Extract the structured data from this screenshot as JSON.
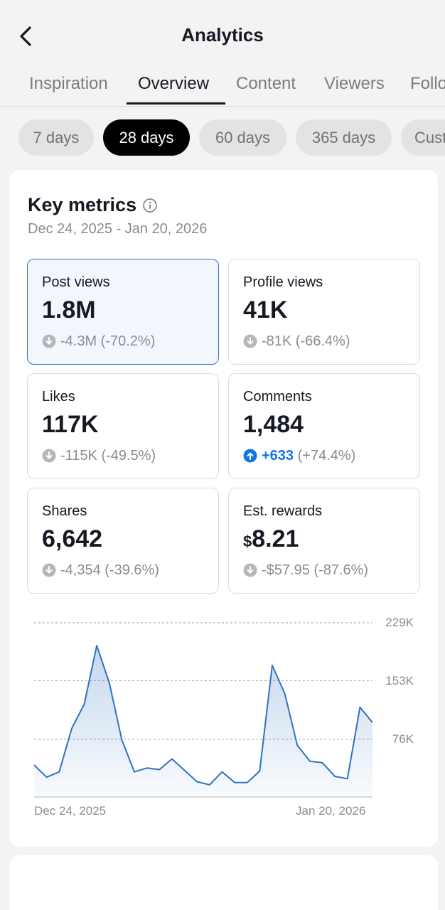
{
  "header": {
    "title": "Analytics",
    "back_icon": "chevron-left-icon"
  },
  "tabs": [
    {
      "label": "Inspiration",
      "active": false
    },
    {
      "label": "Overview",
      "active": true
    },
    {
      "label": "Content",
      "active": false
    },
    {
      "label": "Viewers",
      "active": false
    },
    {
      "label": "Followers",
      "active": false
    }
  ],
  "ranges": [
    {
      "label": "7 days",
      "active": false
    },
    {
      "label": "28 days",
      "active": true
    },
    {
      "label": "60 days",
      "active": false
    },
    {
      "label": "365 days",
      "active": false
    },
    {
      "label": "Custom",
      "active": false
    }
  ],
  "key_metrics": {
    "title": "Key metrics",
    "info_icon": "info-circle-icon",
    "date_range": "Dec 24, 2025 - Jan 20, 2026",
    "tiles": [
      {
        "label": "Post views",
        "value": "1.8M",
        "change": "-4.3M (-70.2%)",
        "trend": "down",
        "selected": true
      },
      {
        "label": "Profile views",
        "value": "41K",
        "change": "-81K (-66.4%)",
        "trend": "down",
        "selected": false
      },
      {
        "label": "Likes",
        "value": "117K",
        "change": "-115K (-49.5%)",
        "trend": "down",
        "selected": false
      },
      {
        "label": "Comments",
        "value": "1,484",
        "change_value": "+633",
        "change_pct": "(+74.4%)",
        "trend": "up",
        "selected": false
      },
      {
        "label": "Shares",
        "value": "6,642",
        "change": "-4,354 (-39.6%)",
        "trend": "down",
        "selected": false
      },
      {
        "label": "Est. rewards",
        "currency": "$",
        "value": "8.21",
        "change": "-$57.95 (-87.6%)",
        "trend": "down",
        "selected": false
      }
    ]
  },
  "colors": {
    "accent": "#1673e6",
    "line": "#2f73bf",
    "down_icon": "#b4b6ba",
    "selected_border": "#2f73bf"
  },
  "chart_data": {
    "type": "area",
    "title": "",
    "series_name": "Post views",
    "ylim": [
      0,
      229000
    ],
    "yticks": [
      {
        "value": 229000,
        "label": "229K"
      },
      {
        "value": 153000,
        "label": "153K"
      },
      {
        "value": 76000,
        "label": "76K"
      }
    ],
    "x_start_label": "Dec 24, 2025",
    "x_end_label": "Jan 20, 2026",
    "values": [
      42000,
      26000,
      33000,
      90000,
      122000,
      199000,
      150000,
      75000,
      33000,
      38000,
      36000,
      50000,
      35000,
      20000,
      16000,
      33000,
      19000,
      19000,
      34000,
      173000,
      136000,
      68000,
      47000,
      45000,
      27000,
      24000,
      118000,
      98000
    ]
  }
}
